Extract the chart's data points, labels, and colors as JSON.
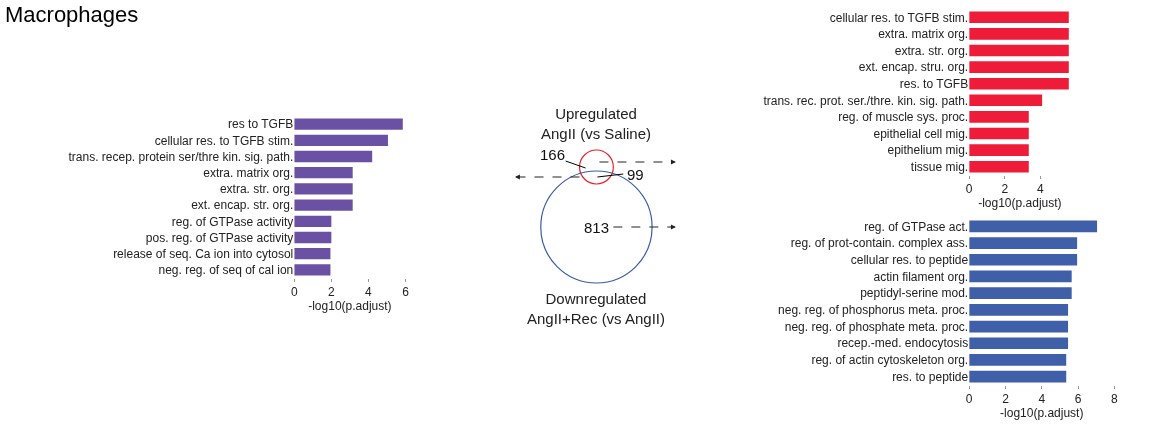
{
  "chart_data": [
    {
      "type": "bar",
      "title": "Macrophages",
      "orientation": "horizontal",
      "xlabel": "-log10(p.adjust)",
      "color": "#6a51a3",
      "categories": [
        "res to TGFB",
        "cellular res. to TGFB stim.",
        "trans. recep. protein ser/thre kin. sig. path.",
        "extra. matrix org.",
        "extra. str. org.",
        "ext. encap. str. org.",
        "reg. of GTPase activity",
        "pos. reg. of GTPase activity",
        "release of seq. Ca ion into cytosol",
        "neg. reg. of seq of cal ion"
      ],
      "values": [
        5.85,
        5.05,
        4.2,
        3.15,
        3.15,
        3.15,
        2.0,
        2.0,
        1.95,
        1.95
      ],
      "xlim": [
        0,
        6
      ],
      "xticks": [
        0,
        2,
        4,
        6
      ]
    },
    {
      "type": "other",
      "categories": [
        "Upregulated AngII (vs Saline)",
        null,
        "Downregulated AngII+Rec (vs AngII)"
      ],
      "values": [
        166,
        99,
        813
      ],
      "value_labels": [
        "166",
        "99",
        "813"
      ],
      "colors": [
        "#e8202a",
        "#000000",
        "#3a5ba8"
      ]
    },
    {
      "type": "bar",
      "orientation": "horizontal",
      "xlabel": "-log10(p.adjust)",
      "color": "#ee1c38",
      "categories": [
        "cellular res. to TGFB stim.",
        "extra. matrix org.",
        "extra. str. org.",
        "ext. encap. stru. org.",
        "res. to TGFB",
        "trans. rec. prot. ser./thre. kin. sig. path.",
        "reg. of muscle sys. proc.",
        "epithelial cell mig.",
        "epithelium mig.",
        "tissue mig."
      ],
      "values": [
        5.6,
        5.6,
        5.6,
        5.6,
        5.6,
        4.1,
        3.35,
        3.35,
        3.35,
        3.35
      ],
      "xlim": [
        0,
        5.7
      ],
      "xticks": [
        0,
        2,
        4
      ]
    },
    {
      "type": "bar",
      "orientation": "horizontal",
      "xlabel": "-log10(p.adjust)",
      "color": "#3f5fa8",
      "categories": [
        "reg. of GTPase act.",
        "reg. of prot-contain. complex ass.",
        "cellular res. to peptide",
        "actin filament org.",
        "peptidyl-serine mod.",
        "neg. reg. of phosphorus meta. proc.",
        "neg. reg. of phosphate meta. proc.",
        "recep.-med. endocytosis",
        "reg. of actin cytoskeleton org.",
        "res. to peptide"
      ],
      "values": [
        7.05,
        5.95,
        5.95,
        5.65,
        5.65,
        5.45,
        5.45,
        5.45,
        5.35,
        5.35
      ],
      "xlim": [
        0,
        8
      ],
      "xticks": [
        0,
        2,
        4,
        6,
        8
      ]
    }
  ]
}
